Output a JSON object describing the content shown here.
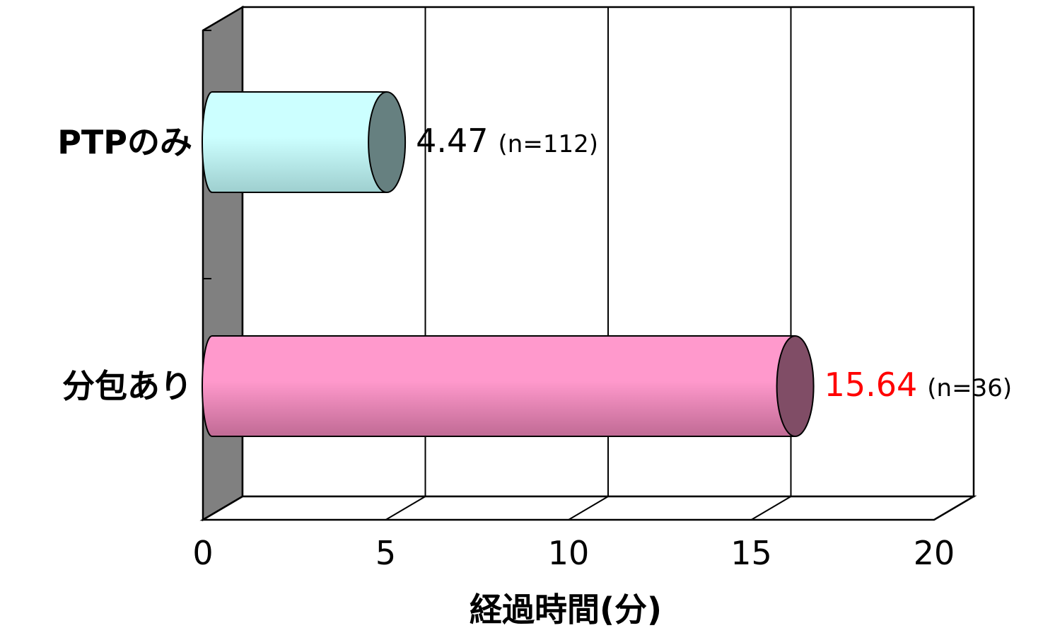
{
  "chart_data": {
    "type": "bar",
    "orientation": "horizontal",
    "style": "3d-cylinder",
    "categories": [
      "PTPのみ",
      "分包あり"
    ],
    "values": [
      4.47,
      15.64
    ],
    "value_labels": [
      "4.47",
      "15.64"
    ],
    "n_labels": [
      "(n=112)",
      "(n=36)"
    ],
    "xlabel": "経過時間(分)",
    "xlim": [
      0,
      20
    ],
    "xticks": [
      "0",
      "5",
      "10",
      "15",
      "20"
    ],
    "grid": true,
    "colors": {
      "bar_0": "#ccffff",
      "bar_0_dark": "#9ecfcf",
      "bar_0_cap": "#668080",
      "bar_1": "#ff99cc",
      "bar_1_dark": "#c06a94",
      "bar_1_cap": "#804d66",
      "value_1": "#ff0000",
      "wall": "#808080"
    }
  }
}
